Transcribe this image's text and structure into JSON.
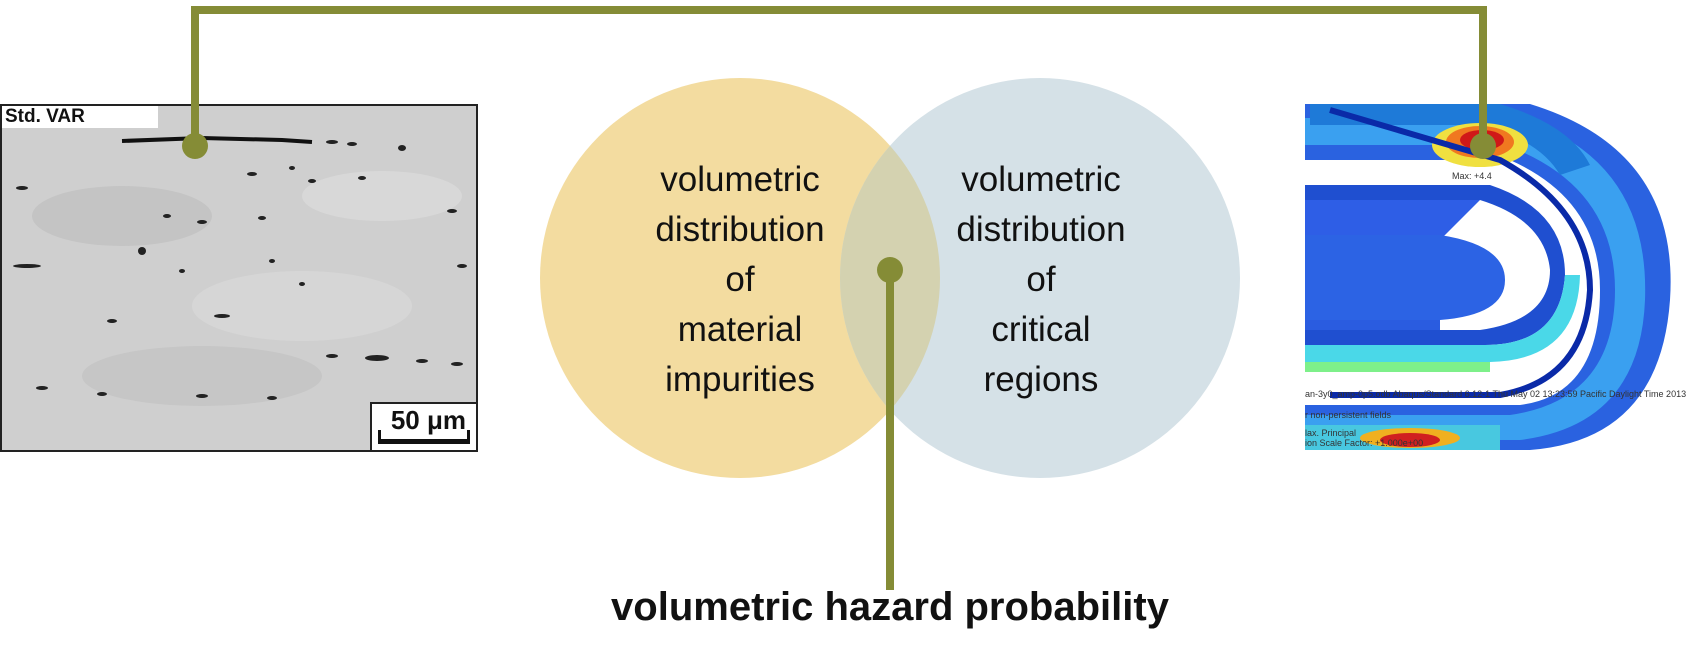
{
  "micrograph": {
    "label": "Std. VAR",
    "scale_text": "50 μm"
  },
  "venn": {
    "left": {
      "lines": [
        "volumetric",
        "distribution",
        "of",
        "material",
        "impurities"
      ],
      "color": "#f3dca0"
    },
    "right": {
      "lines": [
        "volumetric",
        "distribution",
        "of",
        "critical",
        "regions"
      ],
      "color": "#d5e1e7"
    },
    "overlap_color": "#d4d2b0"
  },
  "result_label": "volumetric hazard probability",
  "connector_color": "#858c36",
  "fea": {
    "max_label": "Max: +4.4",
    "footer": {
      "line1": "an-3y0_amp-0p5.odb    Abaqus/Standard 6.12-1    Thu May 02 13:23:59 Pacific Daylight Time 2013",
      "line2": "r non-persistent fields",
      "line3": "lax. Principal",
      "line4": "ion Scale Factor: +1.000e+00"
    }
  }
}
